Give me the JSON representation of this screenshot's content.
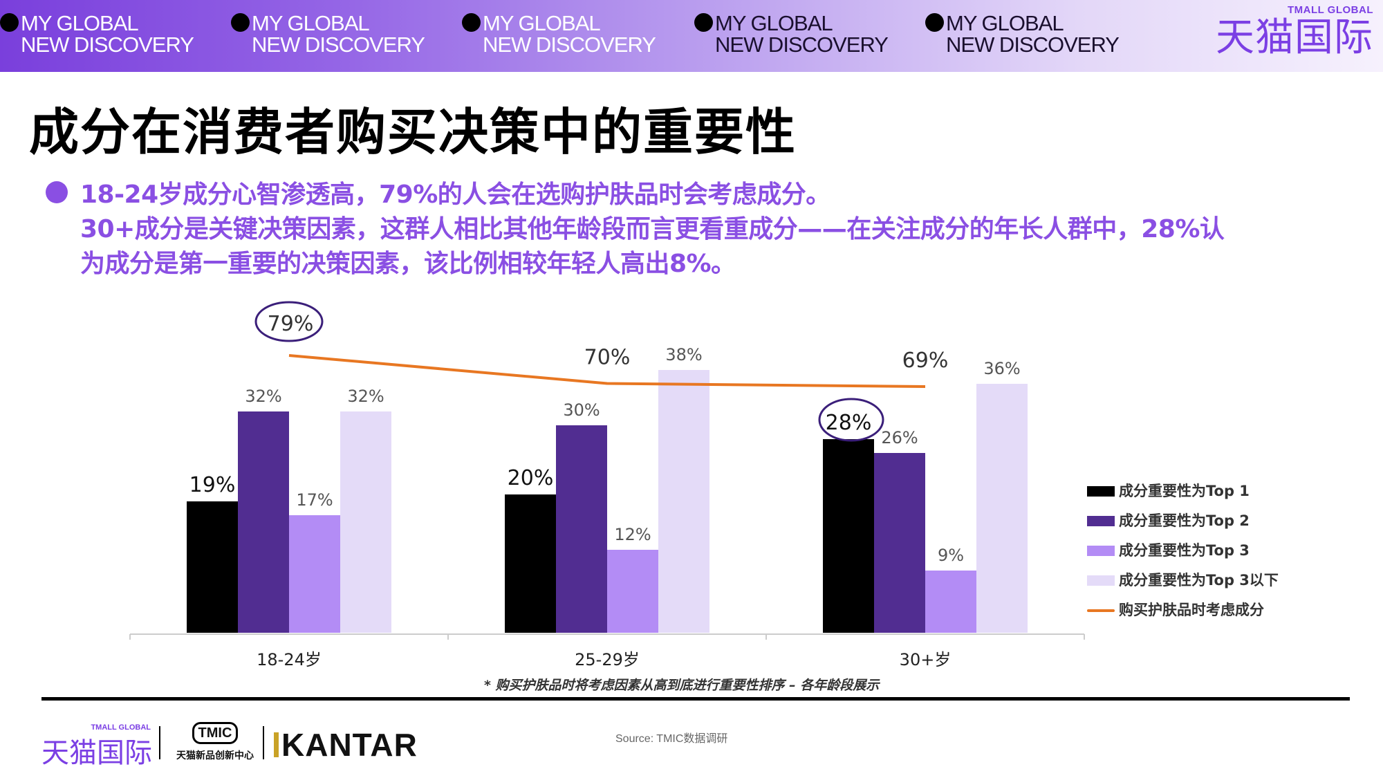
{
  "banner": {
    "tags": [
      {
        "line1": "MY GLOBAL",
        "line2": "NEW DISCOVERY"
      },
      {
        "line1": "MY GLOBAL",
        "line2": "NEW DISCOVERY"
      },
      {
        "line1": "MY GLOBAL",
        "line2": "NEW DISCOVERY"
      },
      {
        "line1": "MY GLOBAL",
        "line2": "NEW DISCOVERY"
      },
      {
        "line1": "MY GLOBAL",
        "line2": "NEW DISCOVERY"
      }
    ],
    "brand_en": "TMALL GLOBAL",
    "brand_cn": "天猫国际"
  },
  "page_title": "成分在消费者购买决策中的重要性",
  "bullets": [
    "18-24岁成分心智渗透高，79%的人会在选购护肤品时会考虑成分。",
    "30+成分是关键决策因素，这群人相比其他年龄段而言更看重成分——在关注成分的年长人群中，28%认",
    "为成分是第一重要的决策因素，该比例相较年轻人高出8%。"
  ],
  "colors": {
    "accent": "#8a4fe3",
    "top1": "#000000",
    "top2": "#512d91",
    "top3": "#b38cf5",
    "below_top3": "#e4dbf8",
    "line": "#e87722"
  },
  "chart_data": {
    "type": "bar",
    "categories": [
      "18-24岁",
      "25-29岁",
      "30+岁"
    ],
    "series": [
      {
        "name": "成分重要性为Top 1",
        "values": [
          19,
          20,
          28
        ],
        "labels": [
          "19%",
          "20%",
          "28%"
        ]
      },
      {
        "name": "成分重要性为Top 2",
        "values": [
          32,
          30,
          26
        ],
        "labels": [
          "32%",
          "30%",
          "26%"
        ]
      },
      {
        "name": "成分重要性为Top 3",
        "values": [
          17,
          12,
          9
        ],
        "labels": [
          "17%",
          "12%",
          "9%"
        ]
      },
      {
        "name": "成分重要性为Top 3以下",
        "values": [
          32,
          38,
          36
        ],
        "labels": [
          "32%",
          "38%",
          "36%"
        ]
      }
    ],
    "line_series": {
      "name": "购买护肤品时考虑成分",
      "values": [
        79,
        70,
        69
      ],
      "labels": [
        "79%",
        "70%",
        "69%"
      ],
      "type": "line"
    },
    "highlighted": [
      "79%",
      "28%"
    ],
    "legend_position": "right",
    "grid": false
  },
  "footnote": "* 购买护肤品时将考虑因素从高到底进行重要性排序 – 各年龄段展示",
  "footer": {
    "tmall_en": "TMALL GLOBAL",
    "tmall_cn": "天猫国际",
    "tmic_mark": "TMIC",
    "tmic_sub": "天猫新品创新中心",
    "kantar": "KANTAR",
    "source": "Source: TMIC数据调研"
  }
}
